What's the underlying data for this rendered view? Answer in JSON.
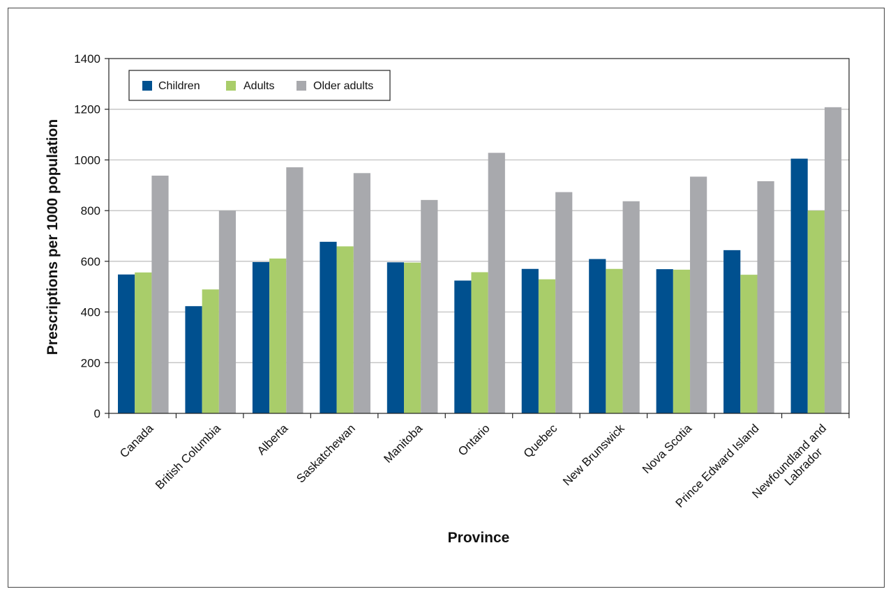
{
  "chart_data": {
    "type": "bar",
    "title": "",
    "xlabel": "Province",
    "ylabel": "Prescriptions per 1000 population",
    "ylim": [
      0,
      1400
    ],
    "yticks": [
      0,
      200,
      400,
      600,
      800,
      1000,
      1200,
      1400
    ],
    "grid": true,
    "legend_position": "top-left",
    "categories": [
      "Canada",
      "British Columbia",
      "Alberta",
      "Saskatchewan",
      "Manitoba",
      "Ontario",
      "Quebec",
      "New Brunswick",
      "Nova Scotia",
      "Prince Edward Island",
      "Newfoundland and Labrador"
    ],
    "series": [
      {
        "name": "Children",
        "color": "#00508f",
        "values": [
          548,
          423,
          597,
          677,
          596,
          524,
          570,
          609,
          569,
          644,
          1005
        ]
      },
      {
        "name": "Adults",
        "color": "#a9cd6a",
        "values": [
          556,
          489,
          611,
          659,
          595,
          557,
          529,
          570,
          567,
          547,
          800
        ]
      },
      {
        "name": "Older adults",
        "color": "#a8a9ad",
        "values": [
          938,
          800,
          971,
          948,
          842,
          1028,
          873,
          837,
          934,
          916,
          1208
        ]
      }
    ]
  }
}
